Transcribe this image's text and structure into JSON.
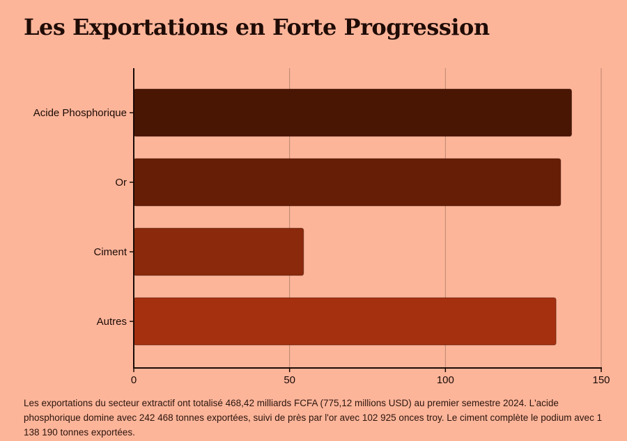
{
  "chart_data": {
    "type": "bar",
    "orientation": "horizontal",
    "title": "Les Exportations en Forte Progression",
    "categories": [
      "Acide Phosphorique",
      "Or",
      "Ciment",
      "Autres"
    ],
    "values": [
      140.5,
      137,
      54.5,
      135.5
    ],
    "colors": [
      "#4a1604",
      "#671e07",
      "#8a290b",
      "#a5300f"
    ],
    "xlim": [
      0,
      150
    ],
    "xticks": [
      0,
      50,
      100,
      150
    ],
    "grid": true,
    "caption": "Les exportations du secteur extractif ont totalisé 468,42 milliards FCFA (775,12 millions USD) au premier semestre 2024. L'acide phosphorique domine avec 242 468 tonnes exportées, suivi de près par l'or avec 102 925 onces troy. Le ciment complète le podium avec 1 138 190 tonnes exportées."
  }
}
